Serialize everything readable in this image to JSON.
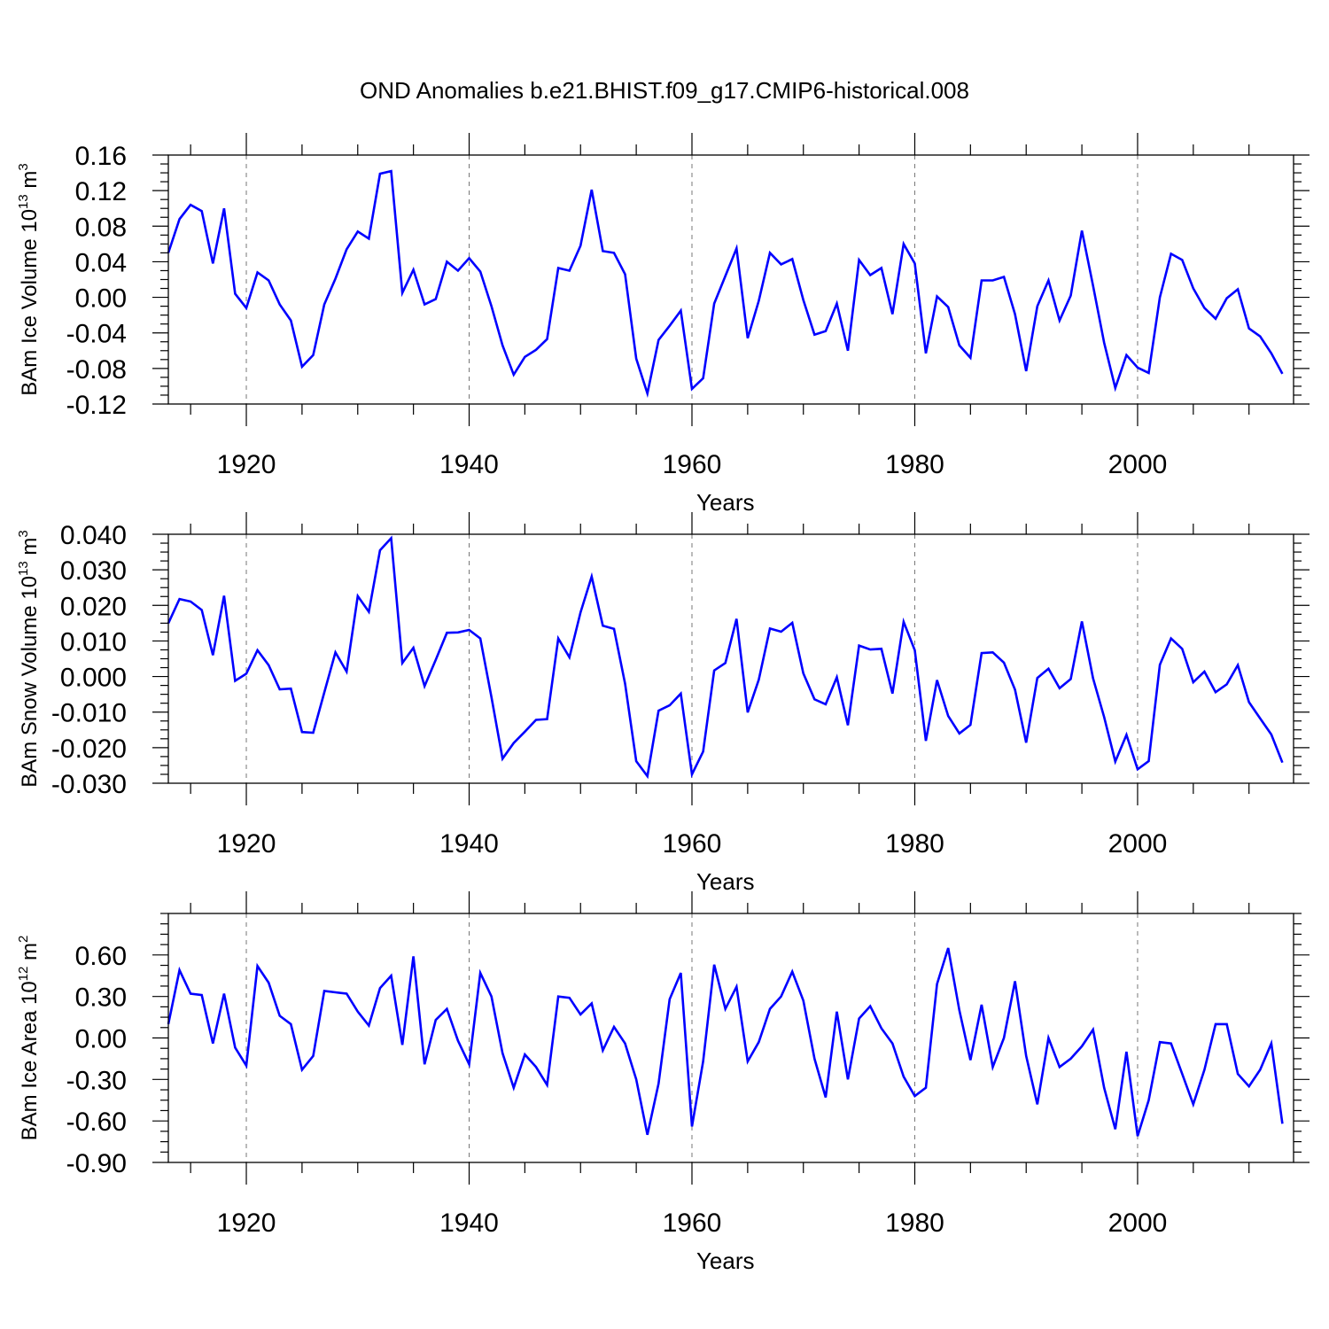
{
  "title": "OND Anomalies b.e21.BHIST.f09_g17.CMIP6-historical.008",
  "colors": {
    "series": "#0000ff"
  },
  "chart_data": [
    {
      "type": "line",
      "xlabel": "Years",
      "ylabel": "BAm Ice Volume 10",
      "ylabel_exp": "13",
      "ylabel_unit": " m",
      "ylabel_unit_exp": "3",
      "xlim": [
        1913,
        2014
      ],
      "ylim": [
        -0.12,
        0.16
      ],
      "xticks": [
        1920,
        1940,
        1960,
        1980,
        2000
      ],
      "yticks": [
        "0.16",
        "0.12",
        "0.08",
        "0.04",
        "0.00",
        "-0.04",
        "-0.08",
        "-0.12"
      ],
      "ytick_values": [
        0.16,
        0.12,
        0.08,
        0.04,
        0.0,
        -0.04,
        -0.08,
        -0.12
      ],
      "grid": "vertical dashed at major x ticks",
      "x_start": 1913,
      "values": [
        0.05,
        0.088,
        0.104,
        0.097,
        0.038,
        0.1,
        0.004,
        -0.012,
        0.028,
        0.019,
        -0.008,
        -0.026,
        -0.078,
        -0.065,
        -0.008,
        0.021,
        0.054,
        0.074,
        0.066,
        0.139,
        0.142,
        0.005,
        0.031,
        -0.008,
        -0.002,
        0.04,
        0.03,
        0.044,
        0.029,
        -0.01,
        -0.054,
        -0.087,
        -0.067,
        -0.059,
        -0.047,
        0.033,
        0.03,
        0.058,
        0.121,
        0.052,
        0.05,
        0.026,
        -0.069,
        -0.108,
        -0.048,
        -0.032,
        -0.015,
        -0.103,
        -0.091,
        -0.007,
        0.024,
        0.055,
        -0.046,
        -0.004,
        0.05,
        0.037,
        0.043,
        -0.003,
        -0.042,
        -0.038,
        -0.007,
        -0.06,
        0.042,
        0.025,
        0.033,
        -0.019,
        0.06,
        0.038,
        -0.063,
        0.001,
        -0.011,
        -0.054,
        -0.068,
        0.019,
        0.019,
        0.023,
        -0.019,
        -0.083,
        -0.01,
        0.019,
        -0.026,
        0.002,
        0.075,
        0.013,
        -0.051,
        -0.102,
        -0.065,
        -0.079,
        -0.085,
        0.0,
        0.049,
        0.042,
        0.01,
        -0.012,
        -0.024,
        -0.001,
        0.009,
        -0.035,
        -0.044,
        -0.063,
        -0.086
      ]
    },
    {
      "type": "line",
      "xlabel": "Years",
      "ylabel": "BAm Snow Volume 10",
      "ylabel_exp": "13",
      "ylabel_unit": " m",
      "ylabel_unit_exp": "3",
      "xlim": [
        1913,
        2014
      ],
      "ylim": [
        -0.03,
        0.04
      ],
      "xticks": [
        1920,
        1940,
        1960,
        1980,
        2000
      ],
      "yticks": [
        "0.040",
        "0.030",
        "0.020",
        "0.010",
        "0.000",
        "-0.010",
        "-0.020",
        "-0.030"
      ],
      "ytick_values": [
        0.04,
        0.03,
        0.02,
        0.01,
        0.0,
        -0.01,
        -0.02,
        -0.03
      ],
      "grid": "vertical dashed at major x ticks",
      "x_start": 1913,
      "values": [
        0.015,
        0.0218,
        0.0211,
        0.0187,
        0.006,
        0.0227,
        -0.0012,
        0.0008,
        0.0074,
        0.0032,
        -0.0036,
        -0.0034,
        -0.0156,
        -0.0158,
        -0.0045,
        0.0068,
        0.0014,
        0.0226,
        0.0182,
        0.0355,
        0.0389,
        0.0038,
        0.0081,
        -0.0027,
        0.0047,
        0.0123,
        0.0124,
        0.0131,
        0.0107,
        -0.0058,
        -0.0231,
        -0.0187,
        -0.0155,
        -0.0122,
        -0.012,
        0.0107,
        0.0054,
        0.018,
        0.0281,
        0.0143,
        0.0134,
        -0.002,
        -0.0238,
        -0.028,
        -0.0096,
        -0.0081,
        -0.0048,
        -0.0275,
        -0.0211,
        0.0017,
        0.0038,
        0.0162,
        -0.0101,
        -0.0009,
        0.0135,
        0.0126,
        0.0151,
        0.0009,
        -0.0064,
        -0.0078,
        -0.0002,
        -0.0137,
        0.0087,
        0.0076,
        0.0078,
        -0.0048,
        0.0154,
        0.0074,
        -0.0181,
        -0.001,
        -0.0111,
        -0.016,
        -0.0136,
        0.0066,
        0.0068,
        0.0039,
        -0.0037,
        -0.0186,
        -0.0004,
        0.0022,
        -0.0033,
        -0.0007,
        0.0155,
        -0.0005,
        -0.0114,
        -0.0239,
        -0.0164,
        -0.0261,
        -0.0238,
        0.0033,
        0.0107,
        0.0078,
        -0.0016,
        0.0014,
        -0.0044,
        -0.0022,
        0.0032,
        -0.0072,
        -0.0118,
        -0.0163,
        -0.0242
      ]
    },
    {
      "type": "line",
      "xlabel": "Years",
      "ylabel": "BAm Ice Area 10",
      "ylabel_exp": "12",
      "ylabel_unit": " m",
      "ylabel_unit_exp": "2",
      "xlim": [
        1913,
        2014
      ],
      "ylim": [
        -0.9,
        0.9
      ],
      "xticks": [
        1920,
        1940,
        1960,
        1980,
        2000
      ],
      "yticks": [
        "0.60",
        "0.30",
        "0.00",
        "-0.30",
        "-0.60",
        "-0.90"
      ],
      "ytick_values": [
        0.6,
        0.3,
        0.0,
        -0.3,
        -0.6,
        -0.9
      ],
      "grid": "vertical dashed at major x ticks",
      "x_start": 1913,
      "values": [
        0.1,
        0.49,
        0.32,
        0.31,
        -0.04,
        0.32,
        -0.07,
        -0.2,
        0.52,
        0.4,
        0.16,
        0.1,
        -0.23,
        -0.13,
        0.34,
        0.33,
        0.32,
        0.19,
        0.09,
        0.36,
        0.45,
        -0.05,
        0.59,
        -0.19,
        0.13,
        0.21,
        -0.02,
        -0.19,
        0.47,
        0.3,
        -0.11,
        -0.36,
        -0.12,
        -0.21,
        -0.34,
        0.3,
        0.29,
        0.17,
        0.25,
        -0.09,
        0.08,
        -0.04,
        -0.3,
        -0.7,
        -0.33,
        0.28,
        0.47,
        -0.64,
        -0.17,
        0.53,
        0.21,
        0.37,
        -0.17,
        -0.03,
        0.21,
        0.3,
        0.48,
        0.27,
        -0.15,
        -0.43,
        0.19,
        -0.3,
        0.14,
        0.23,
        0.07,
        -0.04,
        -0.28,
        -0.42,
        -0.36,
        0.39,
        0.65,
        0.2,
        -0.16,
        0.24,
        -0.21,
        0.0,
        0.41,
        -0.13,
        -0.48,
        0.0,
        -0.21,
        -0.15,
        -0.06,
        0.06,
        -0.36,
        -0.66,
        -0.1,
        -0.71,
        -0.45,
        -0.03,
        -0.04,
        -0.26,
        -0.48,
        -0.23,
        0.1,
        0.1,
        -0.26,
        -0.35,
        -0.23,
        -0.04,
        -0.62
      ]
    }
  ]
}
